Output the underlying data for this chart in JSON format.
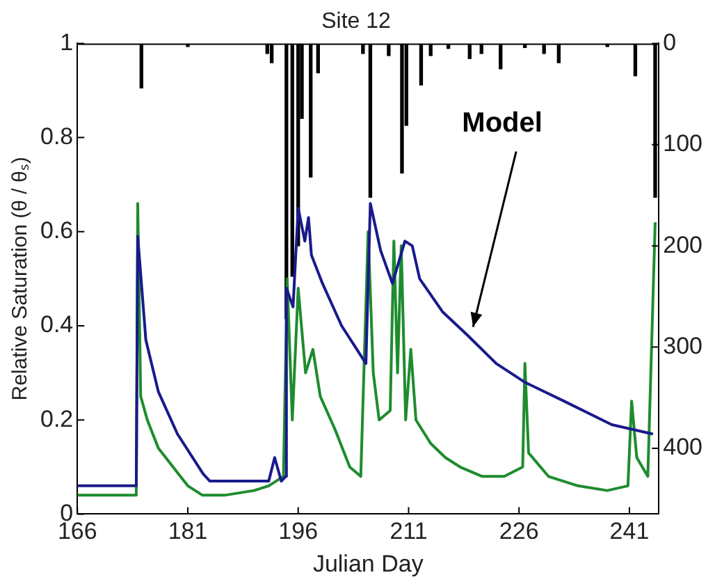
{
  "chart_data": {
    "type": "line",
    "title": "Site 12",
    "xlabel": "Julian Day",
    "ylabel": "Relative Saturation (θ / θₛ)",
    "xlim": [
      166,
      245
    ],
    "xticks": [
      166,
      181,
      196,
      211,
      226,
      241
    ],
    "ylim": [
      0,
      1
    ],
    "yticks": [
      0,
      0.2,
      0.4,
      0.6,
      0.8,
      1
    ],
    "y2lim": [
      465,
      0
    ],
    "y2ticks": [
      0,
      100,
      200,
      300,
      400
    ],
    "grid": false,
    "legend": false,
    "marker": "none",
    "line_style": "solid",
    "series": [
      {
        "type": "bar",
        "axis": "y2",
        "color": "#000000",
        "x": [
          174.7,
          181,
          191.8,
          192.4,
          194.4,
          195.2,
          196.0,
          196.5,
          197.7,
          198.7,
          204.8,
          205.8,
          208.3,
          210.1,
          210.7,
          212.7,
          214,
          216.4,
          219.3,
          220.9,
          223.5,
          226.8,
          229.4,
          231.4,
          238,
          241.8,
          244.5
        ],
        "values": [
          44,
          3,
          10,
          19,
          272,
          230,
          200,
          74,
          132,
          29,
          10,
          152,
          12,
          128,
          81,
          41,
          12,
          5,
          15,
          10,
          25,
          4,
          10,
          19,
          3,
          32,
          152
        ]
      },
      {
        "name": "Model",
        "color": "#1a1a8c",
        "x": [
          166,
          174.0,
          174.2,
          175.3,
          177,
          179.6,
          183.1,
          184,
          192,
          192.8,
          193.7,
          194.3,
          194.4,
          195.3,
          196,
          196.9,
          197.4,
          197.8,
          199.3,
          201.9,
          205.2,
          205.8,
          207.2,
          208.8,
          210.5,
          211.5,
          212.5,
          215.6,
          219,
          222.9,
          226.8,
          232.1,
          238.6,
          244.2
        ],
        "values": [
          0.06,
          0.06,
          0.59,
          0.37,
          0.26,
          0.17,
          0.085,
          0.07,
          0.07,
          0.12,
          0.07,
          0.08,
          0.48,
          0.44,
          0.65,
          0.58,
          0.63,
          0.55,
          0.49,
          0.4,
          0.32,
          0.66,
          0.56,
          0.49,
          0.58,
          0.57,
          0.5,
          0.43,
          0.38,
          0.32,
          0.28,
          0.24,
          0.19,
          0.17
        ]
      },
      {
        "color": "#1e8c2e",
        "x": [
          166,
          174.0,
          174.2,
          174.6,
          175.5,
          177,
          179,
          181,
          183,
          186,
          190,
          192,
          194,
          194.5,
          195.2,
          196,
          197,
          198,
          199,
          201,
          203,
          204.5,
          205.5,
          206.2,
          207,
          208.5,
          209,
          209.5,
          210,
          210.6,
          211.3,
          212,
          214,
          216,
          218,
          221,
          224,
          226.5,
          226.8,
          227.3,
          230,
          234,
          238,
          240.8,
          241.3,
          242,
          243.5,
          244.5
        ],
        "values": [
          0.04,
          0.04,
          0.66,
          0.25,
          0.2,
          0.14,
          0.1,
          0.06,
          0.04,
          0.04,
          0.05,
          0.06,
          0.08,
          0.5,
          0.2,
          0.48,
          0.3,
          0.35,
          0.25,
          0.18,
          0.1,
          0.08,
          0.6,
          0.3,
          0.2,
          0.22,
          0.58,
          0.3,
          0.57,
          0.2,
          0.35,
          0.2,
          0.15,
          0.12,
          0.1,
          0.08,
          0.08,
          0.1,
          0.32,
          0.13,
          0.08,
          0.06,
          0.05,
          0.06,
          0.24,
          0.12,
          0.08,
          0.62
        ]
      }
    ]
  }
}
